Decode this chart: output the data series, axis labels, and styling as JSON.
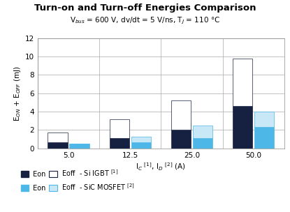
{
  "title": "Turn-on and Turn-off Energies Comparison",
  "subtitle": "V$_{bus}$ = 600 V, dv/dt = 5 V/ns, T$_J$ = 110 °C",
  "xlabel": "I$_C$ $^{[1]}$, I$_D$ $^{[2]}$ (A)",
  "ylabel": "E$_{ON}$ + E$_{OFF}$ (mJ)",
  "cat_labels": [
    "5.0",
    "12.5",
    "25.0",
    "50.0"
  ],
  "igbt_eon": [
    0.65,
    1.1,
    2.05,
    4.65
  ],
  "igbt_eoff": [
    1.05,
    2.1,
    3.15,
    5.1
  ],
  "sic_eon": [
    0.5,
    0.65,
    1.1,
    2.35
  ],
  "sic_eoff": [
    0.05,
    0.65,
    1.4,
    1.65
  ],
  "igbt_eon_color": "#162040",
  "igbt_eoff_color": "#ffffff",
  "igbt_eoff_edge": "#162040",
  "sic_eon_color": "#4db8e8",
  "sic_eoff_color": "#c8e8f8",
  "sic_eoff_edge": "#4db8e8",
  "ylim": [
    0,
    12
  ],
  "yticks": [
    0,
    2,
    4,
    6,
    8,
    10,
    12
  ],
  "bar_width": 0.32,
  "background_color": "#ffffff",
  "grid_color": "#aaaaaa"
}
